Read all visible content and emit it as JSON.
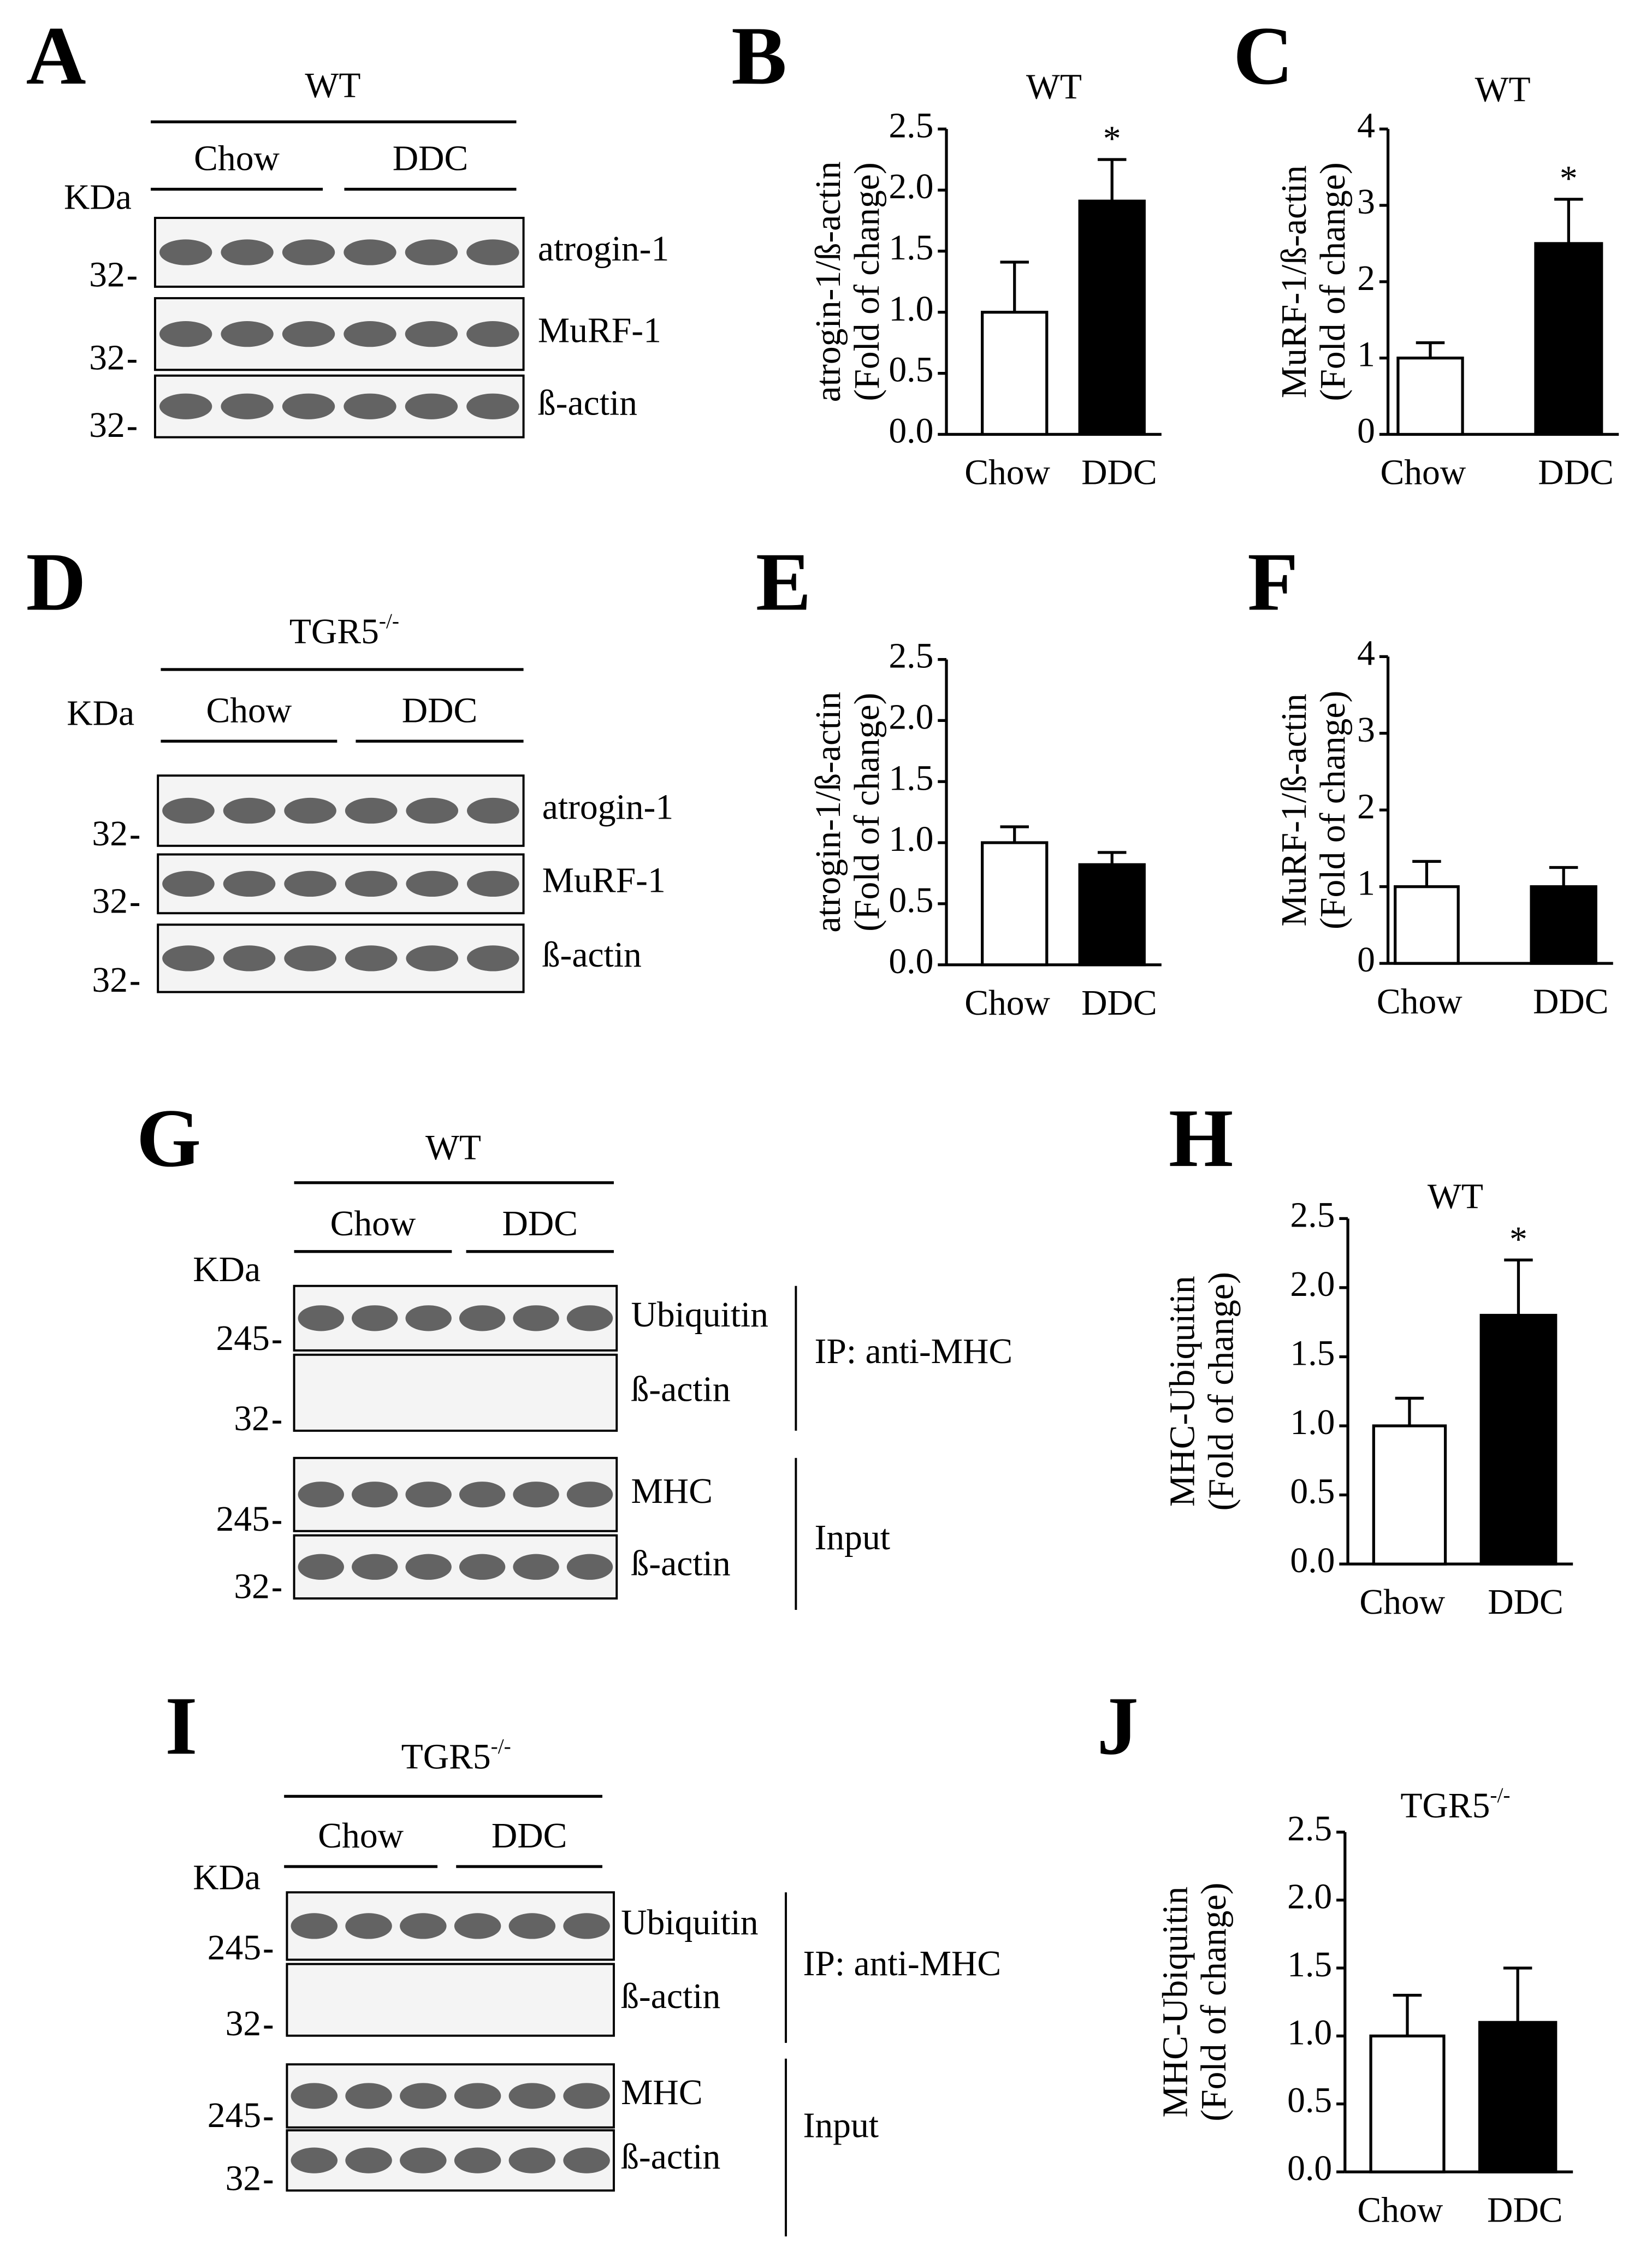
{
  "chart_data": [
    {
      "type": "bar",
      "panel": "B",
      "title": "WT",
      "ylabel": [
        "atrogin-1/ß-actin",
        "(Fold of change)"
      ],
      "categories": [
        "Chow",
        "DDC"
      ],
      "values": [
        1.0,
        1.91
      ],
      "errors": [
        0.41,
        0.34
      ],
      "colors": [
        "#ffffff",
        "#000000"
      ],
      "significance": [
        null,
        "*"
      ],
      "ylim": [
        0,
        2.5
      ],
      "yticks": [
        {
          "value": 0,
          "label": "0.0"
        },
        0.5,
        {
          "value": 1,
          "label": "1.0"
        },
        1.5,
        {
          "value": 2,
          "label": "2.0"
        },
        2.5
      ]
    },
    {
      "type": "bar",
      "panel": "C",
      "title": "WT",
      "ylabel": [
        "MuRF-1/ß-actin",
        "(Fold of change)"
      ],
      "categories": [
        "Chow",
        "DDC"
      ],
      "values": [
        1.0,
        2.5
      ],
      "errors": [
        0.2,
        0.58
      ],
      "colors": [
        "#ffffff",
        "#000000"
      ],
      "significance": [
        null,
        "*"
      ],
      "ylim": [
        0,
        4
      ],
      "yticks": [
        0,
        1,
        2,
        3,
        4
      ]
    },
    {
      "type": "bar",
      "panel": "E",
      "ylabel": [
        "atrogin-1/ß-actin",
        "(Fold of change)"
      ],
      "categories": [
        "Chow",
        "DDC"
      ],
      "values": [
        1.0,
        0.82
      ],
      "errors": [
        0.13,
        0.1
      ],
      "colors": [
        "#ffffff",
        "#000000"
      ],
      "ylim": [
        0,
        2.5
      ],
      "yticks": [
        {
          "value": 0,
          "label": "0.0"
        },
        0.5,
        {
          "value": 1,
          "label": "1.0"
        },
        1.5,
        {
          "value": 2,
          "label": "2.0"
        },
        2.5
      ]
    },
    {
      "type": "bar",
      "panel": "F",
      "ylabel": [
        "MuRF-1/ß-actin",
        "(Fold of change)"
      ],
      "categories": [
        "Chow",
        "DDC"
      ],
      "values": [
        1.0,
        1.0
      ],
      "errors": [
        0.33,
        0.25
      ],
      "colors": [
        "#ffffff",
        "#000000"
      ],
      "ylim": [
        0,
        4
      ],
      "yticks": [
        0,
        1,
        2,
        3,
        4
      ]
    },
    {
      "type": "bar",
      "panel": "H",
      "title": "WT",
      "ylabel": [
        "MHC-Ubiquitin",
        "(Fold of change)"
      ],
      "categories": [
        "Chow",
        "DDC"
      ],
      "values": [
        1.0,
        1.8
      ],
      "errors": [
        0.2,
        0.4
      ],
      "colors": [
        "#ffffff",
        "#000000"
      ],
      "significance": [
        null,
        "*"
      ],
      "ylim": [
        0,
        2.5
      ],
      "yticks": [
        {
          "value": 0,
          "label": "0.0"
        },
        0.5,
        {
          "value": 1,
          "label": "1.0"
        },
        1.5,
        {
          "value": 2,
          "label": "2.0"
        },
        2.5
      ]
    },
    {
      "type": "bar",
      "panel": "J",
      "title": "TGR5",
      "title_sup": "-/-",
      "ylabel": [
        "MHC-Ubiquitin",
        "(Fold of change)"
      ],
      "categories": [
        "Chow",
        "DDC"
      ],
      "values": [
        1.0,
        1.1
      ],
      "errors": [
        0.3,
        0.4
      ],
      "colors": [
        "#ffffff",
        "#000000"
      ],
      "ylim": [
        0,
        2.5
      ],
      "yticks": [
        {
          "value": 0,
          "label": "0.0"
        },
        0.5,
        {
          "value": 1,
          "label": "1.0"
        },
        1.5,
        {
          "value": 2,
          "label": "2.0"
        },
        2.5
      ]
    }
  ],
  "blots": [
    {
      "panel": "A",
      "group": "WT",
      "conditions": [
        "Chow",
        "DDC"
      ],
      "unit": "KDa",
      "rows": [
        {
          "label": "atrogin-1",
          "marker": "32"
        },
        {
          "label": "MuRF-1",
          "marker": "32"
        },
        {
          "label": "ß-actin",
          "marker": "32"
        }
      ]
    },
    {
      "panel": "D",
      "group": "TGR5",
      "group_sup": "-/-",
      "conditions": [
        "Chow",
        "DDC"
      ],
      "unit": "KDa",
      "rows": [
        {
          "label": "atrogin-1",
          "marker": "32"
        },
        {
          "label": "MuRF-1",
          "marker": "32"
        },
        {
          "label": "ß-actin",
          "marker": "32"
        }
      ]
    },
    {
      "panel": "G",
      "group": "WT",
      "conditions": [
        "Chow",
        "DDC"
      ],
      "unit": "KDa",
      "rows": [
        {
          "label": "Ubiquitin",
          "marker": "245"
        },
        {
          "label": "ß-actin",
          "marker": "32"
        },
        {
          "label": "MHC",
          "marker": "245"
        },
        {
          "label": "ß-actin",
          "marker": "32"
        }
      ],
      "sections": [
        "IP: anti-MHC",
        "Input"
      ]
    },
    {
      "panel": "I",
      "group": "TGR5",
      "group_sup": "-/-",
      "conditions": [
        "Chow",
        "DDC"
      ],
      "unit": "KDa",
      "rows": [
        {
          "label": "Ubiquitin",
          "marker": "245"
        },
        {
          "label": "ß-actin",
          "marker": "32"
        },
        {
          "label": "MHC",
          "marker": "245"
        },
        {
          "label": "ß-actin",
          "marker": "32"
        }
      ],
      "sections": [
        "IP: anti-MHC",
        "Input"
      ]
    }
  ]
}
